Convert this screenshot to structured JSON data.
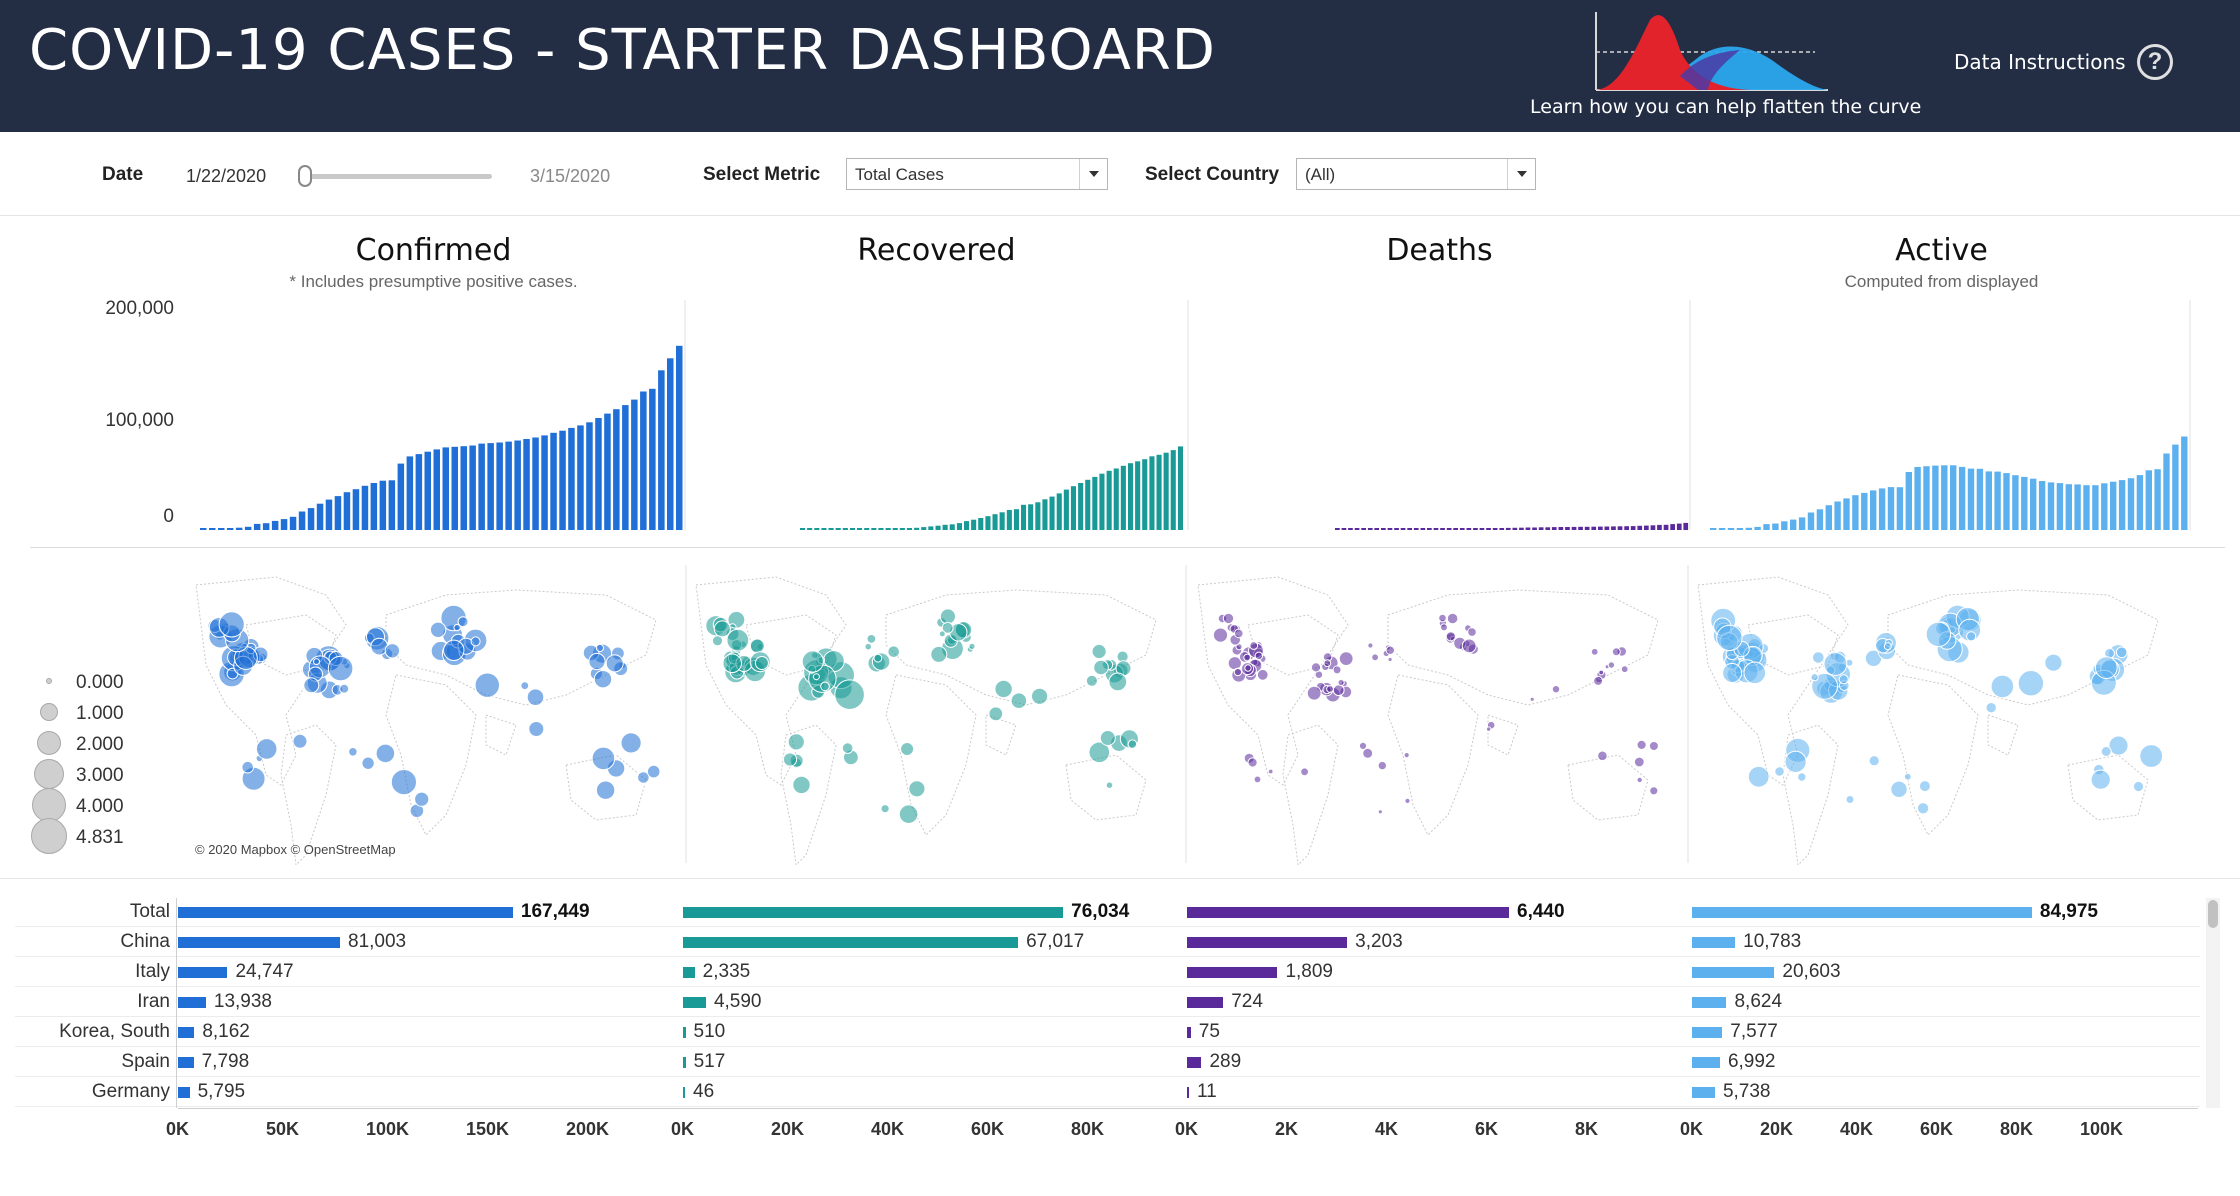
{
  "header": {
    "title": "COVID-19 CASES - STARTER DASHBOARD",
    "curve_caption": "Learn how you can help flatten the curve",
    "instructions_label": "Data Instructions",
    "help_symbol": "?"
  },
  "filters": {
    "date_label": "Date",
    "date_start": "1/22/2020",
    "date_end": "3/15/2020",
    "date_slider_position": 0,
    "metric_label": "Select Metric",
    "metric_value": "Total Cases",
    "country_label": "Select Country",
    "country_value": "(All)"
  },
  "panels": [
    {
      "key": "confirmed",
      "title": "Confirmed",
      "subtitle": "* Includes presumptive positive cases.",
      "color": "#1f6fd6"
    },
    {
      "key": "recovered",
      "title": "Recovered",
      "subtitle": "",
      "color": "#1a9a96"
    },
    {
      "key": "deaths",
      "title": "Deaths",
      "subtitle": "",
      "color": "#5a2a9a"
    },
    {
      "key": "active",
      "title": "Active",
      "subtitle": "Computed from displayed",
      "color": "#5db0ee"
    }
  ],
  "yaxis_labels": [
    "200,000",
    "100,000",
    "0"
  ],
  "chart_data": [
    {
      "type": "bar",
      "series": "confirmed",
      "ylim": [
        0,
        200000
      ],
      "values": [
        555,
        654,
        941,
        1434,
        2118,
        2927,
        5578,
        6166,
        8234,
        9927,
        12038,
        16787,
        19881,
        23892,
        27635,
        30817,
        34391,
        37120,
        40150,
        42762,
        44802,
        45221,
        60368,
        66885,
        69030,
        71224,
        73258,
        75136,
        75639,
        76197,
        76819,
        78572,
        78958,
        79561,
        80406,
        81388,
        82746,
        84112,
        86011,
        88369,
        90306,
        92840,
        95120,
        97886,
        101800,
        105836,
        109835,
        113582,
        118582,
        125865,
        128343,
        145193,
        156099,
        167449
      ]
    },
    {
      "type": "bar",
      "series": "recovered",
      "ylim": [
        0,
        200000
      ],
      "values": [
        28,
        30,
        36,
        39,
        52,
        61,
        107,
        126,
        143,
        222,
        284,
        472,
        623,
        852,
        1124,
        1487,
        2011,
        2616,
        3244,
        3946,
        4683,
        5150,
        6295,
        8058,
        9395,
        10865,
        12583,
        14352,
        16121,
        18177,
        18890,
        22886,
        23394,
        25227,
        27905,
        30384,
        33277,
        36711,
        39782,
        42716,
        45602,
        48228,
        51170,
        53796,
        55865,
        58358,
        60694,
        62494,
        64404,
        67003,
        68324,
        70251,
        72624,
        76034
      ]
    },
    {
      "type": "bar",
      "series": "deaths",
      "ylim": [
        0,
        200000
      ],
      "values": [
        17,
        18,
        26,
        42,
        56,
        82,
        131,
        133,
        171,
        213,
        259,
        362,
        426,
        492,
        564,
        634,
        719,
        806,
        906,
        1013,
        1113,
        1118,
        1371,
        1523,
        1666,
        1770,
        1868,
        2007,
        2122,
        2247,
        2251,
        2458,
        2469,
        2629,
        2708,
        2770,
        2814,
        2872,
        2941,
        2996,
        3085,
        3160,
        3254,
        3348,
        3460,
        3558,
        3802,
        3988,
        4262,
        4615,
        4720,
        5404,
        5819,
        6440
      ]
    },
    {
      "type": "bar",
      "series": "active",
      "ylim": [
        0,
        200000
      ],
      "values": [
        510,
        606,
        879,
        1353,
        2010,
        2784,
        5340,
        5907,
        7920,
        9492,
        11495,
        15953,
        18832,
        22548,
        25947,
        28696,
        31661,
        33698,
        36000,
        37803,
        39006,
        38953,
        52702,
        57304,
        57969,
        58589,
        58807,
        58777,
        57396,
        55773,
        55678,
        53228,
        53095,
        51705,
        49793,
        48234,
        46655,
        44529,
        43288,
        42657,
        41619,
        41452,
        40696,
        40742,
        42475,
        43920,
        45339,
        47100,
        49916,
        54247,
        55299,
        69538,
        77656,
        84975
      ]
    }
  ],
  "map_legend": [
    "0.000",
    "1.000",
    "2.000",
    "3.000",
    "4.000",
    "4.831"
  ],
  "map_credit": "© 2020 Mapbox © OpenStreetMap",
  "table": {
    "rows": [
      {
        "country": "Total",
        "confirmed": "167,449",
        "recovered": "76,034",
        "deaths": "6,440",
        "active": "84,975",
        "bold": true
      },
      {
        "country": "China",
        "confirmed": "81,003",
        "recovered": "67,017",
        "deaths": "3,203",
        "active": "10,783"
      },
      {
        "country": "Italy",
        "confirmed": "24,747",
        "recovered": "2,335",
        "deaths": "1,809",
        "active": "20,603"
      },
      {
        "country": "Iran",
        "confirmed": "13,938",
        "recovered": "4,590",
        "deaths": "724",
        "active": "8,624"
      },
      {
        "country": "Korea, South",
        "confirmed": "8,162",
        "recovered": "510",
        "deaths": "75",
        "active": "7,577"
      },
      {
        "country": "Spain",
        "confirmed": "7,798",
        "recovered": "517",
        "deaths": "289",
        "active": "6,992"
      },
      {
        "country": "Germany",
        "confirmed": "5,795",
        "recovered": "46",
        "deaths": "11",
        "active": "5,738"
      }
    ],
    "raw": {
      "confirmed": [
        167449,
        81003,
        24747,
        13938,
        8162,
        7798,
        5795
      ],
      "recovered": [
        76034,
        67017,
        2335,
        4590,
        510,
        517,
        46
      ],
      "deaths": [
        6440,
        3203,
        1809,
        724,
        75,
        289,
        11
      ],
      "active": [
        84975,
        10783,
        20603,
        8624,
        7577,
        6992,
        5738
      ]
    },
    "axes": {
      "confirmed": {
        "max": 200000,
        "ticks": [
          "0K",
          "50K",
          "100K",
          "150K",
          "200K"
        ]
      },
      "recovered": {
        "max": 80000,
        "ticks": [
          "0K",
          "20K",
          "40K",
          "60K",
          "80K"
        ]
      },
      "deaths": {
        "max": 8000,
        "ticks": [
          "0K",
          "2K",
          "4K",
          "6K",
          "8K"
        ]
      },
      "active": {
        "max": 100000,
        "ticks": [
          "0K",
          "20K",
          "40K",
          "60K",
          "80K",
          "100K"
        ]
      }
    }
  }
}
